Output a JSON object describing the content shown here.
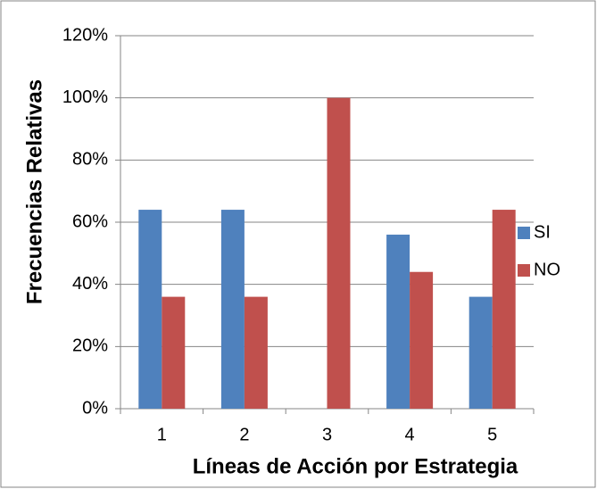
{
  "chart_data": {
    "type": "bar",
    "x_label": "Líneas de Acción por Estrategia",
    "y_label": "Frecuencias Relativas",
    "categories": [
      "1",
      "2",
      "3",
      "4",
      "5"
    ],
    "series": [
      {
        "name": "SI",
        "color": "#4f81bd",
        "values": [
          64,
          64,
          0,
          56,
          36
        ]
      },
      {
        "name": "NO",
        "color": "#c0504d",
        "values": [
          36,
          36,
          100,
          44,
          64
        ]
      }
    ],
    "ylim": [
      0,
      120
    ],
    "yticks": [
      {
        "value": 0,
        "label": "0%"
      },
      {
        "value": 20,
        "label": "20%"
      },
      {
        "value": 40,
        "label": "40%"
      },
      {
        "value": 60,
        "label": "60%"
      },
      {
        "value": 80,
        "label": "80%"
      },
      {
        "value": 100,
        "label": "100%"
      },
      {
        "value": 120,
        "label": "120%"
      }
    ],
    "grid": true,
    "legend": "right"
  }
}
